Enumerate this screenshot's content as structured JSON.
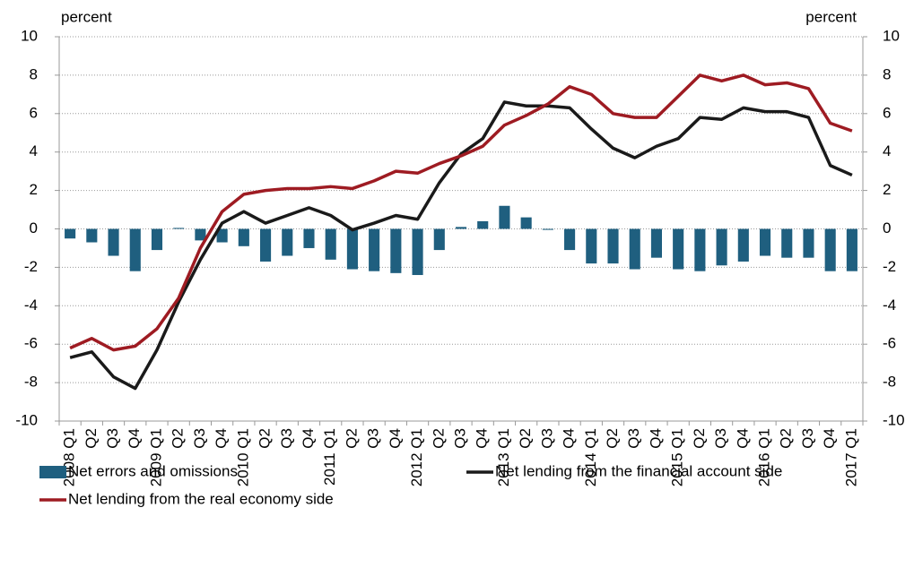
{
  "chart_data": {
    "type": "bar",
    "y_label": "percent",
    "y2_label": "percent",
    "categories": [
      "2008 Q1",
      "Q2",
      "Q3",
      "Q4",
      "2009 Q1",
      "Q2",
      "Q3",
      "Q4",
      "2010 Q1",
      "Q2",
      "Q3",
      "Q4",
      "2011 Q1",
      "Q2",
      "Q3",
      "Q4",
      "2012 Q1",
      "Q2",
      "Q3",
      "Q4",
      "2013 Q1",
      "Q2",
      "Q3",
      "Q4",
      "2014 Q1",
      "Q2",
      "Q3",
      "Q4",
      "2015 Q1",
      "Q2",
      "Q3",
      "Q4",
      "2016 Q1",
      "Q2",
      "Q3",
      "Q4",
      "2017 Q1"
    ],
    "series": [
      {
        "name": "Net errors and omissions",
        "type": "bar",
        "color": "#1f5f7f",
        "values": [
          -0.5,
          -0.7,
          -1.4,
          -2.2,
          -1.1,
          0.05,
          -0.6,
          -0.7,
          -0.9,
          -1.7,
          -1.4,
          -1.0,
          -1.6,
          -2.1,
          -2.2,
          -2.3,
          -2.4,
          -1.1,
          0.1,
          0.4,
          1.2,
          0.6,
          -0.05,
          -1.1,
          -1.8,
          -1.8,
          -2.1,
          -1.5,
          -2.1,
          -2.2,
          -1.9,
          -1.7,
          -1.4,
          -1.5,
          -1.5,
          -2.2,
          -2.2
        ]
      },
      {
        "name": "Net lending from the financial account side",
        "type": "line",
        "color": "#1a1a1a",
        "values": [
          -6.7,
          -6.4,
          -7.7,
          -8.3,
          -6.3,
          -3.8,
          -1.6,
          0.3,
          0.9,
          0.3,
          0.7,
          1.1,
          0.7,
          -0.05,
          0.3,
          0.7,
          0.5,
          2.4,
          3.9,
          4.7,
          6.6,
          6.4,
          6.4,
          6.3,
          5.2,
          4.2,
          3.7,
          4.3,
          4.7,
          5.8,
          5.7,
          6.3,
          6.1,
          6.1,
          5.8,
          3.3,
          2.8
        ]
      },
      {
        "name": "Net lending from the real economy side",
        "type": "line",
        "color": "#9e1b22",
        "values": [
          -6.2,
          -5.7,
          -6.3,
          -6.1,
          -5.2,
          -3.6,
          -1.0,
          0.9,
          1.8,
          2.0,
          2.1,
          2.1,
          2.2,
          2.1,
          2.5,
          3.0,
          2.9,
          3.4,
          3.8,
          4.3,
          5.4,
          5.9,
          6.5,
          7.4,
          7.0,
          6.0,
          5.8,
          5.8,
          6.9,
          8.0,
          7.7,
          8.0,
          7.5,
          7.6,
          7.3,
          5.5,
          5.1
        ]
      }
    ],
    "ylim": [
      -10,
      10
    ],
    "yticks": [
      -10,
      -8,
      -6,
      -4,
      -2,
      0,
      2,
      4,
      6,
      8,
      10
    ],
    "y2lim": [
      -10,
      10
    ],
    "y2ticks": [
      -10,
      -8,
      -6,
      -4,
      -2,
      0,
      2,
      4,
      6,
      8,
      10
    ],
    "grid": true
  }
}
